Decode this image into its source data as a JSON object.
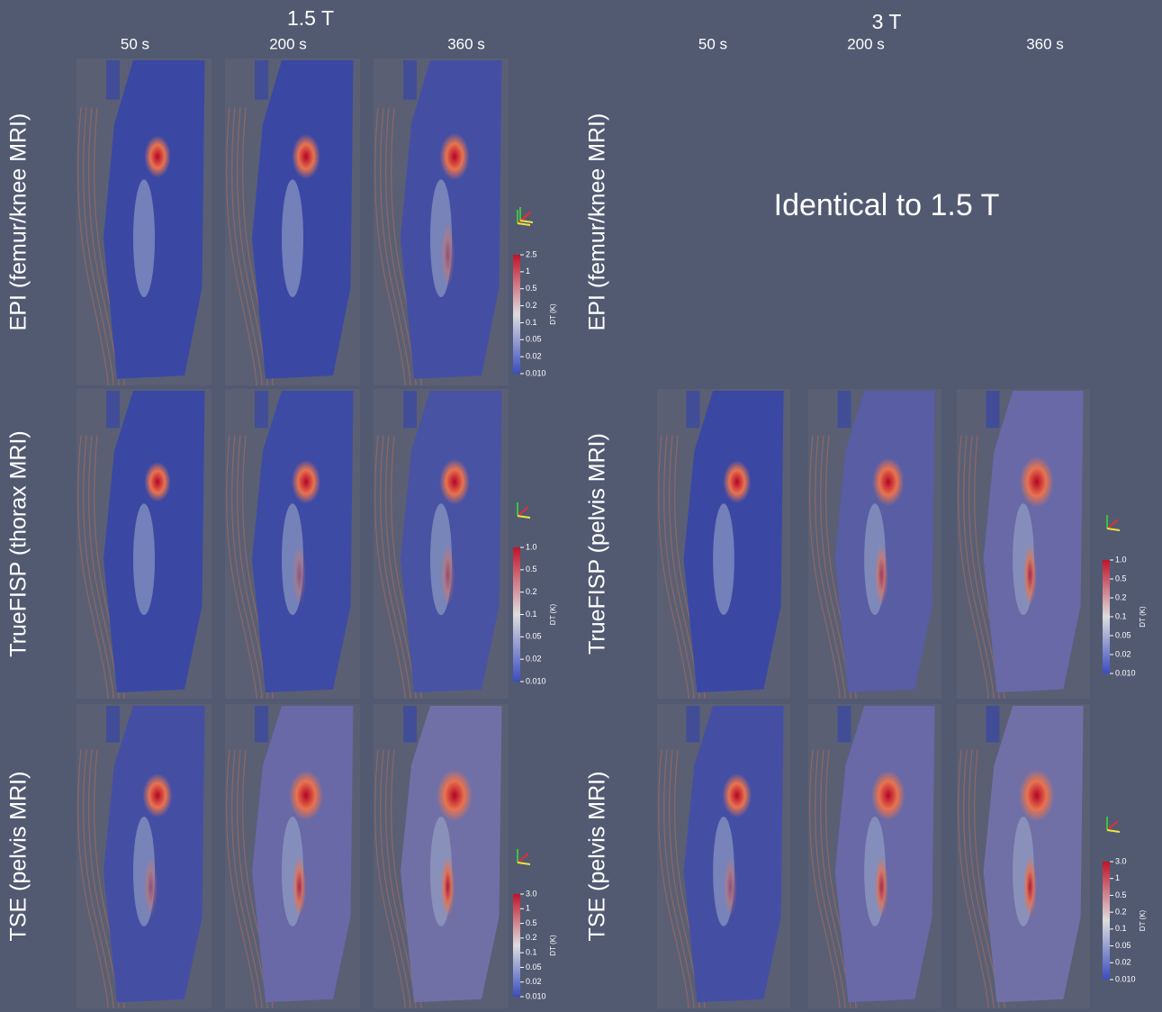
{
  "groups": [
    {
      "field": "1.5 T",
      "times": [
        "50 s",
        "200 s",
        "360 s"
      ],
      "rows": [
        {
          "label": "EPI (femur/knee MRI)",
          "colorbar": {
            "title": "DT (K)",
            "ticks": [
              "2.5",
              "1",
              "0.5",
              "0.2",
              "0.1",
              "0.05",
              "0.02",
              "0.010"
            ]
          }
        },
        {
          "label": "TrueFISP (thorax MRI)",
          "colorbar": {
            "title": "DT (K)",
            "ticks": [
              "1.0",
              "0.5",
              "0.2",
              "0.1",
              "0.05",
              "0.02",
              "0.010"
            ]
          }
        },
        {
          "label": "TSE (pelvis MRI)",
          "colorbar": {
            "title": "DT (K)",
            "ticks": [
              "3.0",
              "1",
              "0.5",
              "0.2",
              "0.1",
              "0.05",
              "0.02",
              "0.010"
            ]
          }
        }
      ]
    },
    {
      "field": "3 T",
      "times": [
        "50 s",
        "200 s",
        "360 s"
      ],
      "rows": [
        {
          "label": "EPI (femur/knee MRI)",
          "note": "Identical to 1.5 T"
        },
        {
          "label": "TrueFISP (pelvis MRI)",
          "colorbar": {
            "title": "DT (K)",
            "ticks": [
              "1.0",
              "0.5",
              "0.2",
              "0.1",
              "0.05",
              "0.02",
              "0.010"
            ]
          }
        },
        {
          "label": "TSE (pelvis MRI)",
          "colorbar": {
            "title": "DT (K)",
            "ticks": [
              "3.0",
              "1",
              "0.5",
              "0.2",
              "0.1",
              "0.05",
              "0.02",
              "0.010"
            ]
          }
        }
      ]
    }
  ]
}
